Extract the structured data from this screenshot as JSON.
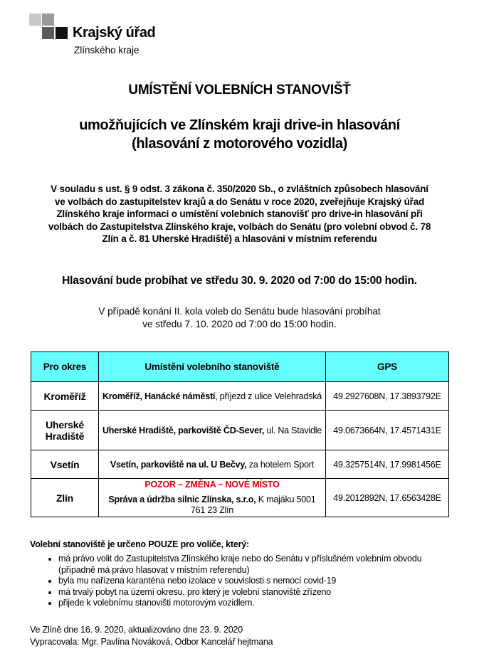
{
  "logo": {
    "title": "Krajský úřad",
    "subtitle": "Zlínského kraje"
  },
  "heading": "UMÍSTĚNÍ VOLEBNÍCH STANOVIŠŤ",
  "subheading": [
    "umožňujících ve Zlínském kraji drive-in hlasování",
    "(hlasování z motorového vozidla)"
  ],
  "intro": [
    "V souladu s ust. § 9 odst. 3 zákona č. 350/2020 Sb., o zvláštních způsobech hlasování",
    "ve volbách do zastupitelstev krajů a do Senátu v roce 2020, zveřejňuje Krajský úřad",
    "Zlínského kraje informaci o umístění volebních stanovišť pro drive-in hlasování při",
    "volbách do Zastupitelstva Zlínského kraje, volbách do Senátu (pro volební obvod č. 78",
    "Zlín a č. 81 Uherské Hradiště) a hlasování v místním referendu"
  ],
  "voting_time": "Hlasování bude probíhat ve středu 30. 9. 2020 od 7:00 do 15:00 hodin.",
  "second_round": [
    "V případě konání II. kola voleb do Senátu bude hlasování probíhat",
    "ve středu 7. 10. 2020 od 7:00 do 15:00 hodin."
  ],
  "table": {
    "headers": [
      "Pro okres",
      "Umístění volebního stanoviště",
      "GPS"
    ],
    "header_color": "#66ffff",
    "rows": [
      {
        "okres": "Kroměříž",
        "place_bold": "Kroměříž, Hanácké náměstí",
        "place_rest": ", příjezd z ulice Velehradská",
        "gps": "49.2927608N, 17.3893792E"
      },
      {
        "okres": "Uherské Hradiště",
        "place_bold": "Uherské Hradiště, parkoviště ČD-Sever,",
        "place_rest": " ul. Na Stavidle",
        "gps": "49.0673664N, 17.4571431E"
      },
      {
        "okres": "Vsetín",
        "place_bold": "Vsetín, parkoviště na ul. U Bečvy,",
        "place_rest": " za hotelem Sport",
        "gps": "49.3257514N, 17.9981456E"
      },
      {
        "okres": "Zlín",
        "notice": "POZOR – ZMĚNA – NOVÉ MÍSTO",
        "place_bold": "Správa a údržba silnic Zlínska, s.r.o,",
        "place_rest": " K majáku 5001",
        "place_line2": "761 23 Zlín",
        "gps": "49.2012892N, 17.6563428E"
      }
    ],
    "notice_color": "#e0000f"
  },
  "eligibility": {
    "title": "Volební stanoviště je určeno POUZE pro voliče, který:",
    "items": [
      "má právo volit do Zastupitelstva Zlínského kraje nebo do Senátu v příslušném volebním obvodu (případně má právo hlasovat v místním referendu)",
      "byla mu nařízena karanténa nebo izolace v souvislosti s nemocí covid-19",
      "má trvalý pobyt na území okresu, pro který je volební stanoviště zřízeno",
      "přijede k volebnímu stanovišti motorovým vozidlem."
    ]
  },
  "footer": {
    "date": "Ve Zlíně dne 16. 9. 2020, aktualizováno dne 23. 9. 2020",
    "author": "Vypracovala: Mgr. Pavlína Nováková, Odbor Kancelář hejtmana"
  }
}
